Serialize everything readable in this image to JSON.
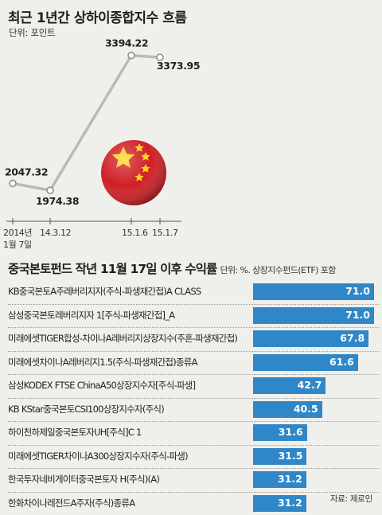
{
  "chart_data": [
    {
      "type": "line",
      "title": "최근 1년간 상하이종합지수 흐름",
      "subtitle": "단위: 포인트",
      "x": [
        "2014년 1월 7일",
        "14.3.12",
        "15.1.6",
        "15.1.7"
      ],
      "x_tick_labels": [
        [
          "2014년",
          "1월 7일"
        ],
        [
          "14.3.12"
        ],
        [
          "15.1.6"
        ],
        [
          "15.1.7"
        ]
      ],
      "series": [
        {
          "values": [
            2047.32,
            1974.38,
            3394.22,
            3373.95
          ]
        }
      ],
      "data_labels": [
        "2047.32",
        "1974.38",
        "3394.22",
        "3373.95"
      ],
      "ylim": [
        1900,
        3500
      ],
      "grid": false,
      "colors": {
        "line": "#b9b9b9",
        "marker_fill": "#ffffff",
        "marker_stroke": "#8a8a8a"
      }
    },
    {
      "type": "bar",
      "orientation": "horizontal",
      "title": "중국본토펀드 작년 11월 17일 이후 수익률",
      "unit_note": "단위: %. 상장지수펀드(ETF) 포함",
      "categories": [
        "KB중국본토A주레버리지자(주식-파생재간접)A CLASS",
        "삼성중국본토레버리지자 1[주식-파생재간접]_A",
        "미래에셋TIGER합성-차이나A레버리지상장지수(주혼-파생재간접)",
        "미래에셋차이나A레버리지1.5(주식-파생재간접)종류A",
        "삼성KODEX FTSE ChinaA50상장지수자[주식-파생]",
        "KB KStar중국본토CSI100상장지수자(주식)",
        "하이천하제일중국본토자UH[주식]C 1",
        "미래에셋TIGER차이나A300상장지수자(주식-파생)",
        "한국투자네비게이터중국본토자 H(주식)(A)",
        "한화차이나레전드A주자(주식)종류A"
      ],
      "values": [
        71.0,
        71.0,
        67.8,
        61.6,
        42.7,
        40.5,
        31.6,
        31.5,
        31.2,
        31.2
      ],
      "value_labels": [
        "71.0",
        "71.0",
        "67.8",
        "61.6",
        "42.7",
        "40.5",
        "31.6",
        "31.5",
        "31.2",
        "31.2"
      ],
      "xlim": [
        0,
        71
      ],
      "grid": false,
      "colors": {
        "bar": "#2f87c8",
        "value_text": "#ffffff"
      }
    }
  ],
  "source": "자료: 제로인"
}
